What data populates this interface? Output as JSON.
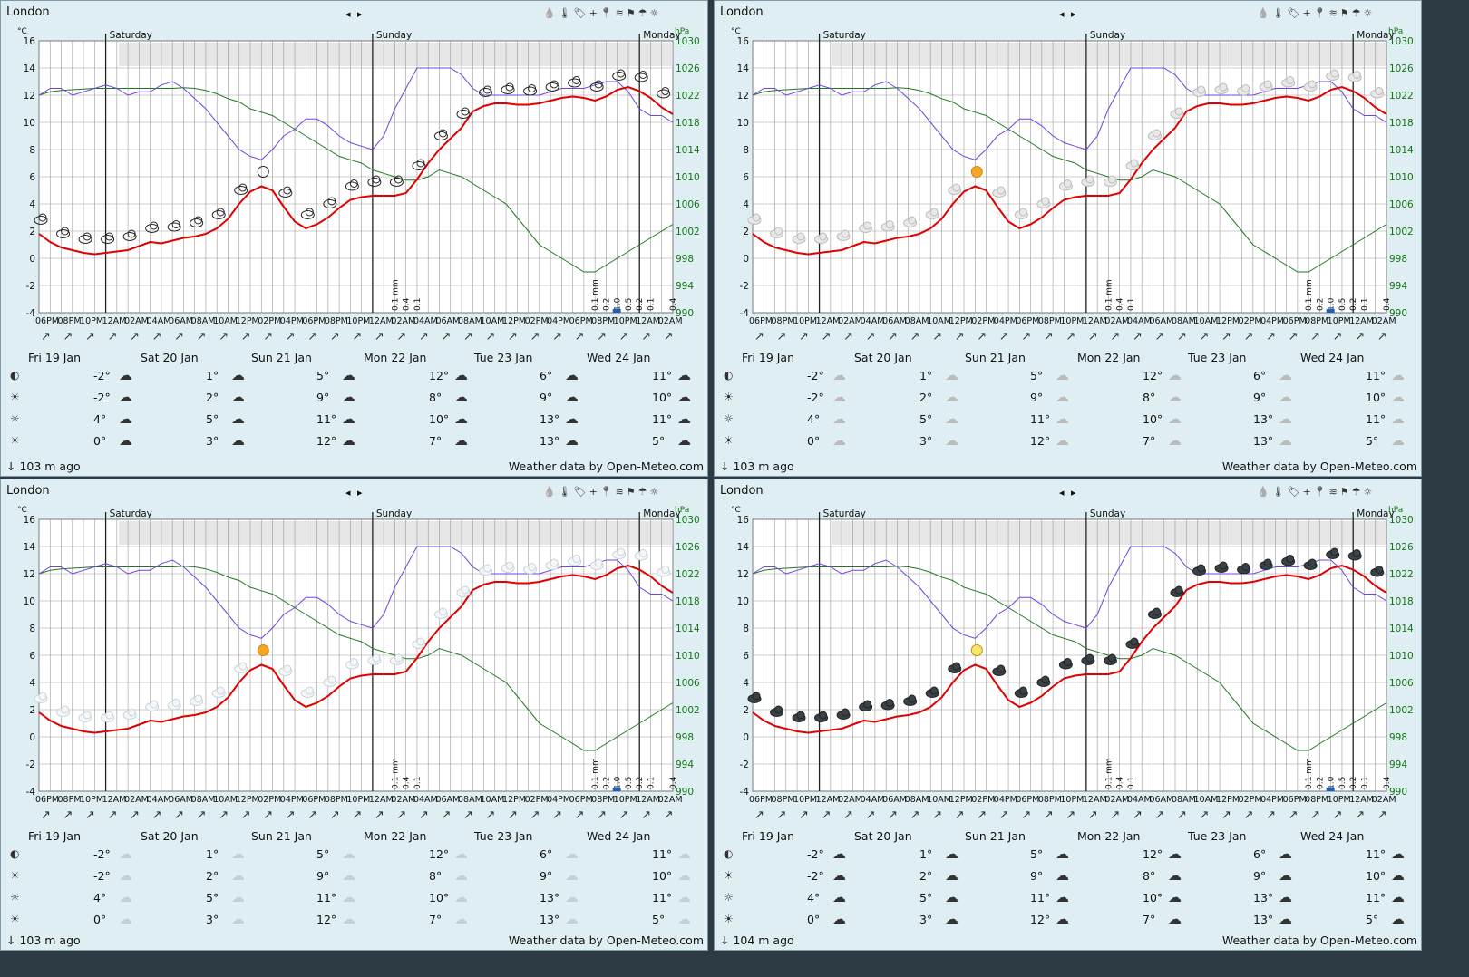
{
  "location": "London",
  "nav_arrows": "◂ ▸",
  "tool_icons": [
    "rain-drop-icon",
    "thermometer-icon",
    "tag-icon",
    "plus-icon",
    "pin-icon",
    "wind-icon",
    "flag-icon",
    "umbrella-icon",
    "sun-icon"
  ],
  "units": {
    "temp": "°C",
    "pressure": "hPa"
  },
  "day_labels": [
    "Saturday",
    "Sunday",
    "Monday"
  ],
  "hour_labels": [
    "06PM",
    "08PM",
    "10PM",
    "12AM",
    "02AM",
    "04AM",
    "06AM",
    "08AM",
    "10AM",
    "12PM",
    "02PM",
    "04PM",
    "06PM",
    "08PM",
    "10PM",
    "12AM",
    "02AM",
    "04AM",
    "06AM",
    "08AM",
    "10AM",
    "12PM",
    "02PM",
    "04PM",
    "06PM",
    "08PM",
    "10PM",
    "12AM",
    "02AM"
  ],
  "forecast_days": [
    "Fri 19 Jan",
    "Sat 20 Jan",
    "Sun 21 Jan",
    "Mon 22 Jan",
    "Tue 23 Jan",
    "Wed 24 Jan"
  ],
  "forecast_rows": [
    [
      "-2°",
      "1°",
      "5°",
      "12°",
      "6°",
      "11°"
    ],
    [
      "-2°",
      "2°",
      "9°",
      "8°",
      "9°",
      "10°"
    ],
    [
      "4°",
      "5°",
      "11°",
      "10°",
      "13°",
      "11°"
    ],
    [
      "0°",
      "3°",
      "12°",
      "7°",
      "13°",
      "5°"
    ]
  ],
  "row_icons": [
    "moonset-icon",
    "sunrise-icon",
    "sun-icon",
    "sunset-icon"
  ],
  "panels": [
    {
      "updated": "↓ 103 m ago",
      "credit": "Weather data by Open-Meteo.com",
      "style": "outline"
    },
    {
      "updated": "↓ 103 m ago",
      "credit": "Weather data by Open-Meteo.com",
      "style": "color"
    },
    {
      "updated": "↓ 103 m ago",
      "credit": "Weather data by Open-Meteo.com",
      "style": "light"
    },
    {
      "updated": "↓ 104 m ago",
      "credit": "Weather data by Open-Meteo.com",
      "style": "dark"
    }
  ],
  "chart_data": {
    "type": "line",
    "x": [
      "06PM",
      "07PM",
      "08PM",
      "09PM",
      "10PM",
      "11PM",
      "12AM",
      "01AM",
      "02AM",
      "03AM",
      "04AM",
      "05AM",
      "06AM",
      "07AM",
      "08AM",
      "09AM",
      "10AM",
      "11AM",
      "12PM",
      "01PM",
      "02PM",
      "03PM",
      "04PM",
      "05PM",
      "06PM",
      "07PM",
      "08PM",
      "09PM",
      "10PM",
      "11PM",
      "12AM",
      "01AM",
      "02AM",
      "03AM",
      "04AM",
      "05AM",
      "06AM",
      "07AM",
      "08AM",
      "09AM",
      "10AM",
      "11AM",
      "12PM",
      "01PM",
      "02PM",
      "03PM",
      "04PM",
      "05PM",
      "06PM",
      "07PM",
      "08PM",
      "09PM",
      "10PM",
      "11PM",
      "12AM",
      "01AM",
      "02AM",
      "03AM"
    ],
    "y_left": {
      "label": "°C",
      "ticks": [
        16,
        14,
        12,
        10,
        8,
        6,
        4,
        2,
        0,
        -2,
        -4
      ],
      "range": [
        -4,
        16
      ]
    },
    "y_right": {
      "label": "hPa",
      "ticks": [
        1030,
        1026,
        1022,
        1018,
        1014,
        1010,
        1006,
        1002,
        998,
        994,
        990
      ],
      "range": [
        990,
        1030
      ]
    },
    "series": [
      {
        "role": "temperature",
        "color": "#e00000",
        "values": [
          1.8,
          1.2,
          0.8,
          0.6,
          0.4,
          0.3,
          0.4,
          0.5,
          0.6,
          0.9,
          1.2,
          1.1,
          1.3,
          1.5,
          1.6,
          1.8,
          2.2,
          2.9,
          4.0,
          4.9,
          5.3,
          5.0,
          3.8,
          2.7,
          2.2,
          2.5,
          3.0,
          3.7,
          4.3,
          4.5,
          4.6,
          4.6,
          4.6,
          4.8,
          5.8,
          7.0,
          8.0,
          8.8,
          9.6,
          10.8,
          11.2,
          11.4,
          11.4,
          11.3,
          11.3,
          11.4,
          11.6,
          11.8,
          11.9,
          11.8,
          11.6,
          11.9,
          12.4,
          12.6,
          12.3,
          11.8,
          11.1,
          10.6
        ]
      },
      {
        "role": "pressure",
        "color": "#7244dd",
        "values": [
          1022,
          1023,
          1023,
          1022,
          1022.5,
          1023,
          1023.5,
          1023,
          1022,
          1022.5,
          1022.5,
          1023.5,
          1024,
          1023,
          1021.5,
          1020,
          1018,
          1016,
          1014,
          1013,
          1012.5,
          1014,
          1016,
          1017,
          1018.5,
          1018.5,
          1017.5,
          1016,
          1015,
          1014.5,
          1014,
          1016,
          1020,
          1023,
          1026,
          1026,
          1026,
          1026,
          1025,
          1023,
          1022,
          1022,
          1022,
          1022,
          1022,
          1022,
          1022.5,
          1023,
          1023,
          1023,
          1023.5,
          1024,
          1024,
          1022.5,
          1020,
          1019,
          1019,
          1018
        ]
      },
      {
        "role": "cloud-band",
        "color": "#227722",
        "values": [
          1022,
          1022.5,
          1022.7,
          1022.8,
          1022.9,
          1023,
          1023,
          1023,
          1023,
          1023,
          1023,
          1023,
          1023,
          1023.1,
          1023,
          1022.7,
          1022.2,
          1021.5,
          1021,
          1020,
          1019.5,
          1019,
          1018,
          1017,
          1016,
          1015,
          1014,
          1013,
          1012.5,
          1012,
          1011,
          1010.5,
          1010,
          1009.5,
          1009.5,
          1010,
          1011,
          1010.5,
          1010,
          1009,
          1008,
          1007,
          1006,
          1004,
          1002,
          1000,
          999,
          998,
          997,
          996,
          996,
          997,
          998,
          999,
          1000,
          1001,
          1002,
          1003
        ]
      }
    ],
    "precipitation_labels": [
      {
        "x": "02AM",
        "value": "0.1 mm"
      },
      {
        "x": "03AM",
        "value": "0.4"
      },
      {
        "x": "04AM",
        "value": "0.1"
      },
      {
        "x": "08PM",
        "value": "0.1 mm"
      },
      {
        "x": "09PM",
        "value": "0.2"
      },
      {
        "x": "10PM",
        "value": "1.0"
      },
      {
        "x": "11PM",
        "value": "0.5"
      },
      {
        "x": "12AM",
        "value": "0.2"
      },
      {
        "x": "01AM",
        "value": "0.1"
      },
      {
        "x": "03AM",
        "value": "0.4"
      }
    ],
    "grid": true
  }
}
